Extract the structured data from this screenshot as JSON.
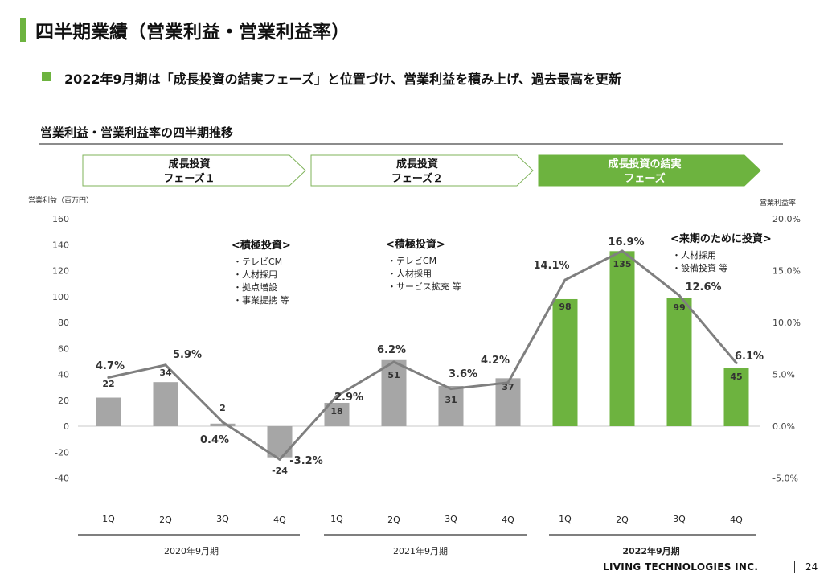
{
  "page": {
    "title": "四半期業績（営業利益・営業利益率）",
    "lead": "2022年9月期は「成長投資の結実フェーズ」と位置づけ、営業利益を積み上げ、過去最高を更新",
    "section_title": "営業利益・営業利益率の四半期推移",
    "footer_company": "LIVING TECHNOLOGIES INC.",
    "page_number": "24"
  },
  "phases": [
    {
      "line1": "成長投資",
      "line2": "フェーズ１",
      "highlight": false
    },
    {
      "line1": "成長投資",
      "line2": "フェーズ２",
      "highlight": false
    },
    {
      "line1": "成長投資の結実",
      "line2": "フェーズ",
      "highlight": true
    }
  ],
  "annotations": [
    {
      "heading": "<積極投資>",
      "items": [
        "・テレビCM",
        "・人材採用",
        "・拠点増設",
        "・事業提携 等"
      ]
    },
    {
      "heading": "<積極投資>",
      "items": [
        "・テレビCM",
        "・人材採用",
        "・サービス拡充 等"
      ]
    },
    {
      "heading": "<来期のために投資>",
      "items": [
        "・人材採用",
        "・設備投資 等"
      ]
    }
  ],
  "colors": {
    "accent": "#6db33f",
    "gray_bar": "#a6a6a6",
    "line": "#7f7f7f"
  },
  "chart_data": {
    "type": "bar",
    "categories": [
      "1Q",
      "2Q",
      "3Q",
      "4Q",
      "1Q",
      "2Q",
      "3Q",
      "4Q",
      "1Q",
      "2Q",
      "3Q",
      "4Q"
    ],
    "groups": [
      {
        "label": "2020年9月期",
        "bold": false
      },
      {
        "label": "2021年9月期",
        "bold": false
      },
      {
        "label": "2022年9月期",
        "bold": true
      }
    ],
    "series": [
      {
        "type": "bar",
        "axis": "left",
        "values": [
          22,
          34,
          2,
          -24,
          18,
          51,
          31,
          37,
          98,
          135,
          99,
          45
        ],
        "labels": [
          "22",
          "34",
          "2",
          "-24",
          "18",
          "51",
          "31",
          "37",
          "98",
          "135",
          "99",
          "45"
        ]
      },
      {
        "type": "line",
        "axis": "right",
        "values": [
          4.7,
          5.9,
          0.4,
          -3.2,
          2.9,
          6.2,
          3.6,
          4.2,
          14.1,
          16.9,
          12.6,
          6.1
        ],
        "labels": [
          "4.7%",
          "5.9%",
          "0.4%",
          "-3.2%",
          "2.9%",
          "6.2%",
          "3.6%",
          "4.2%",
          "14.1%",
          "16.9%",
          "12.6%",
          "6.1%"
        ]
      }
    ],
    "highlight_categories_from_index": 8,
    "y_left": {
      "label": "営業利益（百万円）",
      "min": -40,
      "max": 160,
      "ticks": [
        "160",
        "140",
        "120",
        "100",
        "80",
        "60",
        "40",
        "20",
        "0",
        "-20",
        "-40"
      ]
    },
    "y_right": {
      "label": "営業利益率",
      "min": -5,
      "max": 20,
      "ticks": [
        "20.0%",
        "15.0%",
        "10.0%",
        "5.0%",
        "0.0%",
        "-5.0%"
      ]
    },
    "grid": false,
    "legend": "none"
  }
}
